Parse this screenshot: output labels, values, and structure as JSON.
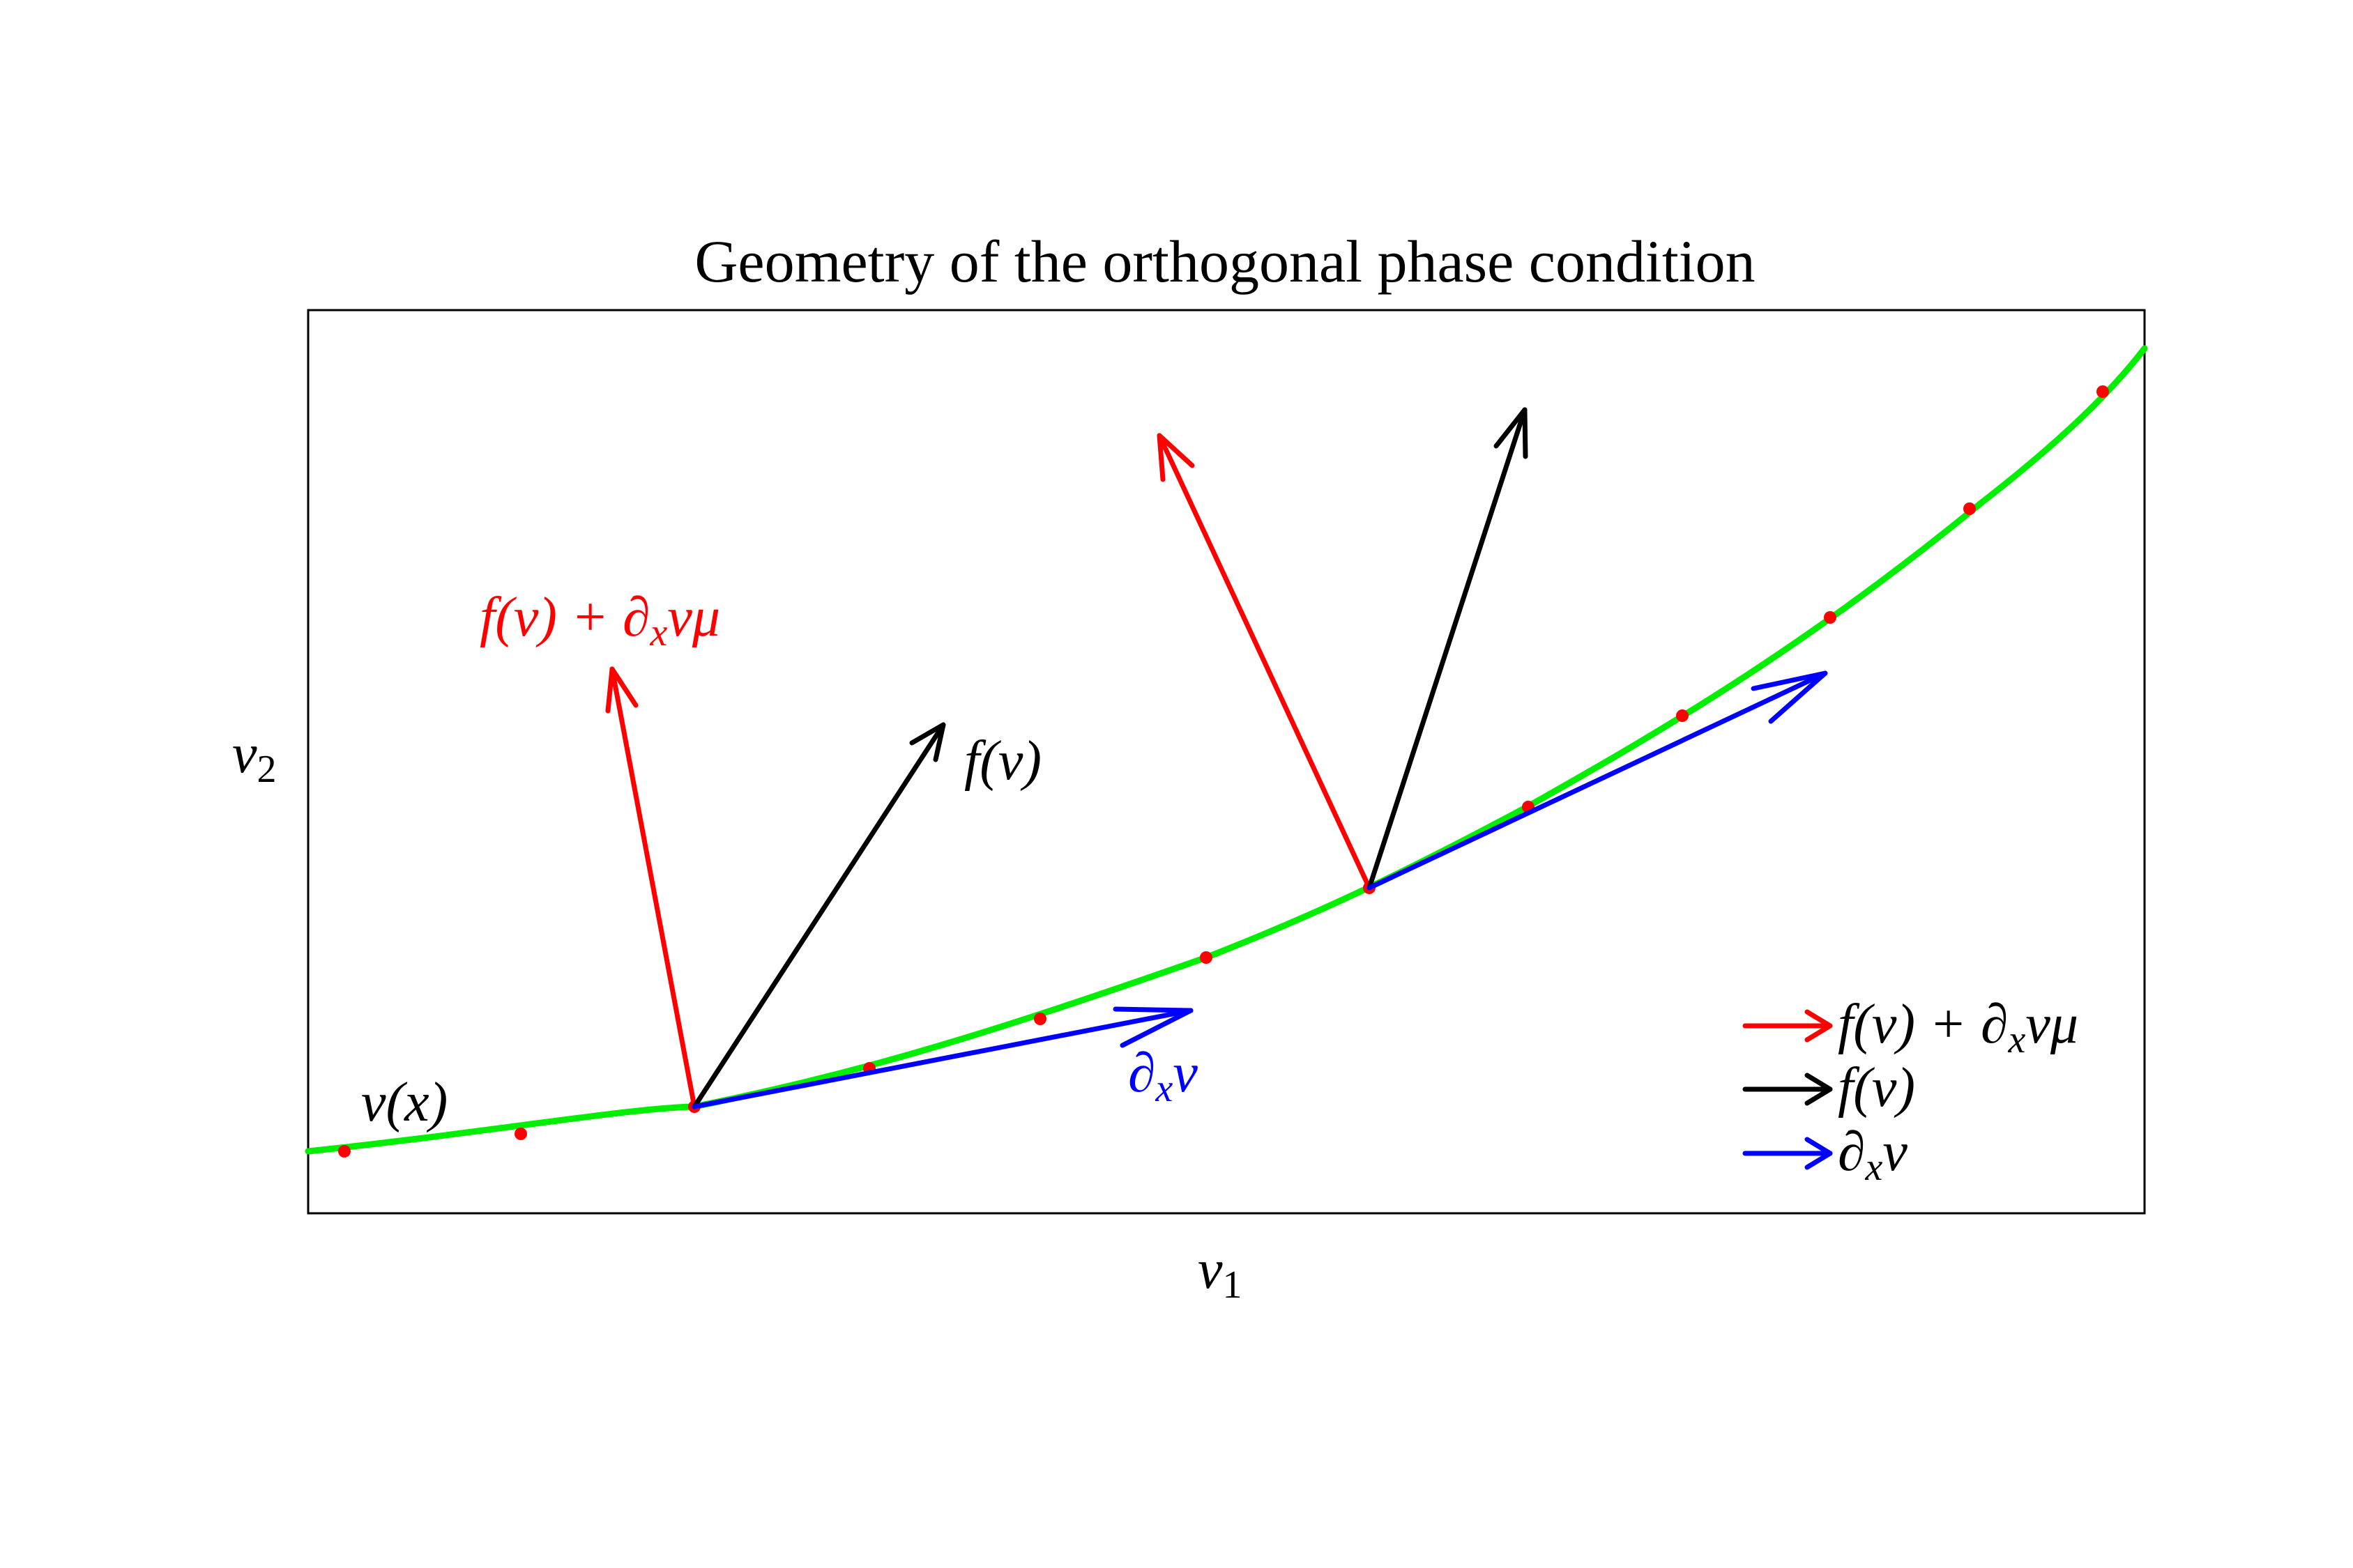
{
  "title": "Geometry of the orthogonal phase condition",
  "axes": {
    "xlabel": {
      "main": "v",
      "sub": "1"
    },
    "ylabel": {
      "main": "v",
      "sub": "2"
    }
  },
  "curve_label": "v(x)",
  "arrow_labels": {
    "red": {
      "pre": "f(v) + ∂",
      "sub": "x",
      "post": "vμ"
    },
    "black": "f(v)",
    "blue": {
      "pre": "∂",
      "sub": "x",
      "post": "v"
    }
  },
  "legend": {
    "placement": "bottom-right",
    "items": [
      {
        "color": "#ff0000",
        "pre": "f(v) + ∂",
        "sub": "x",
        "post": "vμ"
      },
      {
        "color": "#000000",
        "pre": "f(v)",
        "sub": "",
        "post": ""
      },
      {
        "color": "#0000ff",
        "pre": "∂",
        "sub": "x",
        "post": "v"
      }
    ]
  },
  "colors": {
    "curve": "#00ee00",
    "points": "#ff0000",
    "red_arrow": "#ff0000",
    "black_arrow": "#000000",
    "blue_arrow": "#0000ff"
  }
}
